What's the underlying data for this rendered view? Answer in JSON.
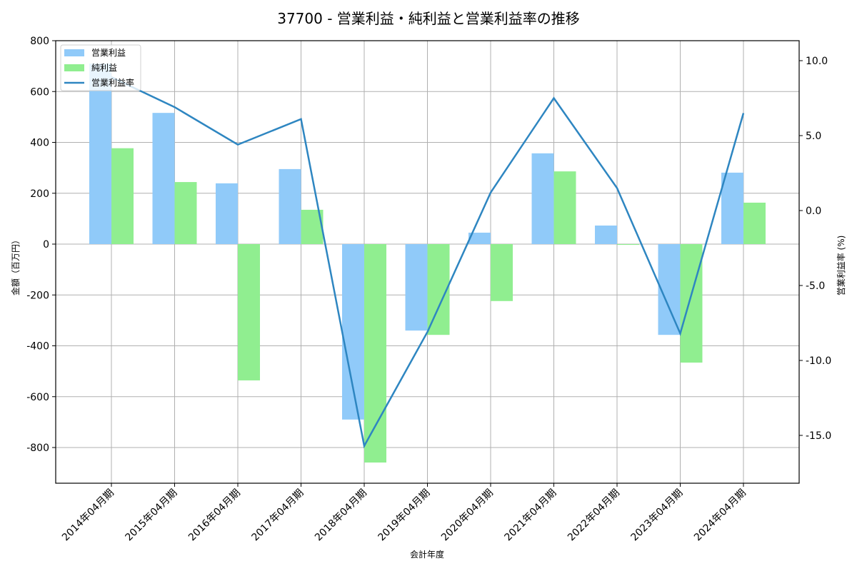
{
  "chart_data": {
    "type": "bar",
    "title": "37700 - 営業利益・純利益と営業利益率の推移",
    "xlabel": "会計年度",
    "ylabel": "金額（百万円）",
    "ylabel_right": "営業利益率 (%)",
    "ylim": [
      -940,
      800
    ],
    "ylim_right": [
      -18.5,
      11.3
    ],
    "yticks": [
      800,
      600,
      400,
      200,
      0,
      -200,
      -400,
      -600,
      -800
    ],
    "yticks_right": [
      10.0,
      5.0,
      0.0,
      -5.0,
      -10.0,
      -15.0
    ],
    "grid": true,
    "legend_position": "upper left",
    "categories": [
      "2014年04月期",
      "2015年04月期",
      "2016年04月期",
      "2017年04月期",
      "2018年04月期",
      "2019年04月期",
      "2020年04月期",
      "2021年04月期",
      "2022年04月期",
      "2023年04月期",
      "2024年04月期"
    ],
    "series": [
      {
        "name": "営業利益",
        "type": "bar",
        "axis": "left",
        "color": "#90caf9",
        "values": [
          710,
          516,
          239,
          295,
          -690,
          -340,
          45,
          357,
          73,
          -357,
          281
        ]
      },
      {
        "name": "純利益",
        "type": "bar",
        "axis": "left",
        "color": "#90ee90",
        "values": [
          377,
          244,
          -536,
          135,
          -859,
          -357,
          -224,
          286,
          -3,
          -466,
          163
        ]
      },
      {
        "name": "営業利益率",
        "type": "line",
        "axis": "right",
        "color": "#2e86c1",
        "values": [
          8.9,
          6.9,
          4.4,
          6.1,
          -15.7,
          -8.1,
          1.2,
          7.5,
          1.5,
          -8.2,
          6.5
        ]
      }
    ]
  }
}
